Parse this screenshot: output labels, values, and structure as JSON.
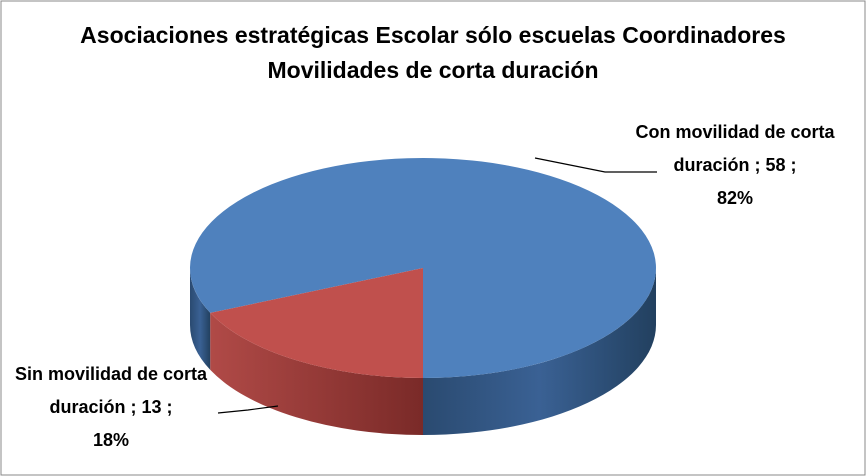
{
  "chart_data": {
    "type": "pie3d",
    "title": "Asociaciones estratégicas Escolar sólo escuelas Coordinadores Movilidades de corta duración",
    "categories": [
      "Con movilidad de corta duración",
      "Sin movilidad de corta duración"
    ],
    "values": [
      58,
      13
    ],
    "percentages": [
      82,
      18
    ],
    "percentage_labels": [
      "82%",
      "18%"
    ],
    "label_separator": ";",
    "colors": [
      "#4f81bd",
      "#c0504d"
    ]
  }
}
